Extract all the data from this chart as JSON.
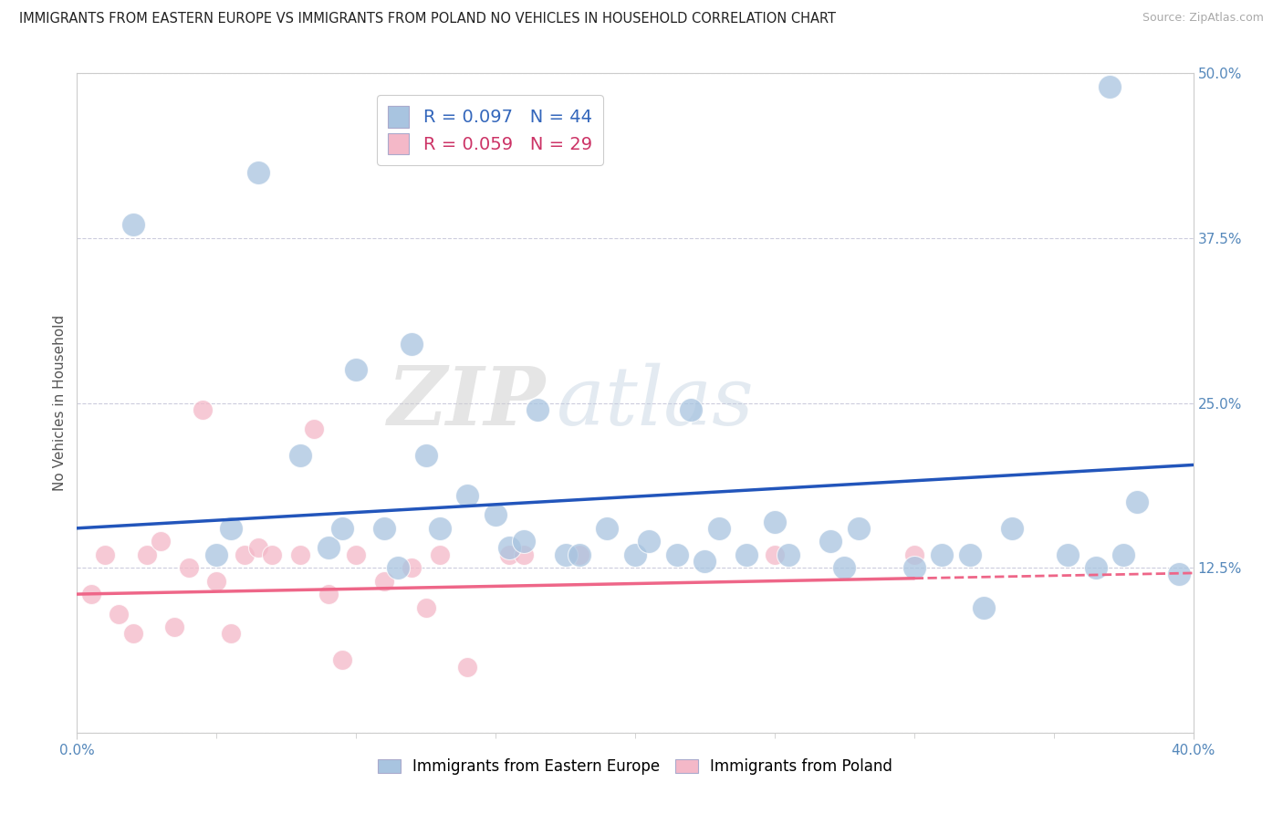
{
  "title": "IMMIGRANTS FROM EASTERN EUROPE VS IMMIGRANTS FROM POLAND NO VEHICLES IN HOUSEHOLD CORRELATION CHART",
  "source": "Source: ZipAtlas.com",
  "ylabel": "No Vehicles in Household",
  "legend_blue_r": "R = 0.097",
  "legend_blue_n": "N = 44",
  "legend_pink_r": "R = 0.059",
  "legend_pink_n": "N = 29",
  "legend_label_blue": "Immigrants from Eastern Europe",
  "legend_label_pink": "Immigrants from Poland",
  "blue_color": "#A8C4E0",
  "pink_color": "#F4B8C8",
  "blue_line_color": "#2255BB",
  "pink_line_color": "#EE6688",
  "watermark_zip": "ZIP",
  "watermark_atlas": "atlas",
  "xlim": [
    0.0,
    0.4
  ],
  "ylim": [
    0.0,
    0.5
  ],
  "yticks": [
    0.0,
    0.125,
    0.25,
    0.375,
    0.5
  ],
  "ytick_labels": [
    "",
    "12.5%",
    "25.0%",
    "37.5%",
    "50.0%"
  ],
  "xtick_left": "0.0%",
  "xtick_right": "40.0%",
  "blue_scatter_x": [
    0.02,
    0.05,
    0.055,
    0.065,
    0.08,
    0.09,
    0.095,
    0.1,
    0.11,
    0.115,
    0.12,
    0.125,
    0.13,
    0.14,
    0.15,
    0.155,
    0.16,
    0.165,
    0.175,
    0.18,
    0.19,
    0.2,
    0.205,
    0.215,
    0.22,
    0.225,
    0.23,
    0.24,
    0.25,
    0.255,
    0.27,
    0.275,
    0.28,
    0.3,
    0.31,
    0.32,
    0.325,
    0.335,
    0.355,
    0.365,
    0.37,
    0.375,
    0.38,
    0.395
  ],
  "blue_scatter_y": [
    0.385,
    0.135,
    0.155,
    0.425,
    0.21,
    0.14,
    0.155,
    0.275,
    0.155,
    0.125,
    0.295,
    0.21,
    0.155,
    0.18,
    0.165,
    0.14,
    0.145,
    0.245,
    0.135,
    0.135,
    0.155,
    0.135,
    0.145,
    0.135,
    0.245,
    0.13,
    0.155,
    0.135,
    0.16,
    0.135,
    0.145,
    0.125,
    0.155,
    0.125,
    0.135,
    0.135,
    0.095,
    0.155,
    0.135,
    0.125,
    0.49,
    0.135,
    0.175,
    0.12
  ],
  "pink_scatter_x": [
    0.005,
    0.01,
    0.015,
    0.02,
    0.025,
    0.03,
    0.035,
    0.04,
    0.045,
    0.05,
    0.055,
    0.06,
    0.065,
    0.07,
    0.08,
    0.085,
    0.09,
    0.095,
    0.1,
    0.11,
    0.12,
    0.125,
    0.13,
    0.14,
    0.155,
    0.16,
    0.18,
    0.25,
    0.3
  ],
  "pink_scatter_y": [
    0.105,
    0.135,
    0.09,
    0.075,
    0.135,
    0.145,
    0.08,
    0.125,
    0.245,
    0.115,
    0.075,
    0.135,
    0.14,
    0.135,
    0.135,
    0.23,
    0.105,
    0.055,
    0.135,
    0.115,
    0.125,
    0.095,
    0.135,
    0.05,
    0.135,
    0.135,
    0.135,
    0.135,
    0.135
  ],
  "blue_scatter_size": 350,
  "pink_scatter_size": 250,
  "background_color": "#FFFFFF",
  "grid_color": "#CCCCDD",
  "title_fontsize": 10.5,
  "source_fontsize": 9,
  "tick_color": "#5588BB",
  "axis_label_color": "#555555",
  "pink_line_solid_x": 0.3,
  "blue_line_intercept": 0.155,
  "blue_line_slope": 0.12,
  "pink_line_intercept": 0.105,
  "pink_line_slope": 0.04
}
